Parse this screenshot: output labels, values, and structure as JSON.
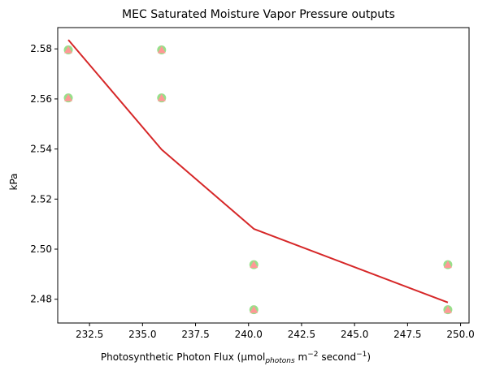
{
  "chart_data": {
    "type": "scatter",
    "title": "MEC Saturated Moisture Vapor Pressure outputs",
    "xlabel": {
      "prefix": "Photosynthetic Photon Flux (µmol",
      "sub": "photons",
      "mid": " m",
      "sup1": "−2",
      "mid2": " second",
      "sup2": "−1",
      "suffix": ")"
    },
    "ylabel": "kPa",
    "xlim": [
      231.0,
      250.4
    ],
    "ylim": [
      2.4705,
      2.5885
    ],
    "xticks": [
      232.5,
      235.0,
      237.5,
      240.0,
      242.5,
      245.0,
      247.5,
      250.0
    ],
    "xtick_labels": [
      "232.5",
      "235.0",
      "237.5",
      "240.0",
      "242.5",
      "245.0",
      "247.5",
      "250.0"
    ],
    "yticks": [
      2.48,
      2.5,
      2.52,
      2.54,
      2.56,
      2.58
    ],
    "ytick_labels": [
      "2.48",
      "2.50",
      "2.52",
      "2.54",
      "2.56",
      "2.58"
    ],
    "grid": false,
    "legend": "none",
    "colors": {
      "points_back": "#98df8a",
      "points_front": "#ff9896",
      "line": "#d62728"
    },
    "scatter_points": [
      {
        "x": 231.5,
        "y": 2.5796
      },
      {
        "x": 231.5,
        "y": 2.5604
      },
      {
        "x": 235.9,
        "y": 2.5796
      },
      {
        "x": 235.9,
        "y": 2.5604
      },
      {
        "x": 240.25,
        "y": 2.4938
      },
      {
        "x": 240.25,
        "y": 2.4758
      },
      {
        "x": 249.4,
        "y": 2.4938
      },
      {
        "x": 249.4,
        "y": 2.4758
      }
    ],
    "line": {
      "x": [
        231.5,
        235.9,
        240.25,
        249.4
      ],
      "y": [
        2.5836,
        2.5398,
        2.5081,
        2.4787
      ]
    }
  }
}
